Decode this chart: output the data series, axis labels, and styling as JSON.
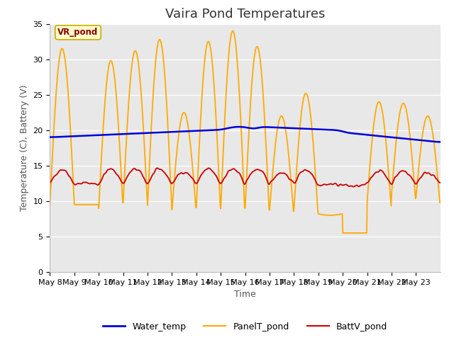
{
  "title": "Vaira Pond Temperatures",
  "xlabel": "Time",
  "ylabel": "Temperature (C), Battery (V)",
  "annotation": "VR_pond",
  "ylim": [
    0,
    35
  ],
  "yticks": [
    0,
    5,
    10,
    15,
    20,
    25,
    30,
    35
  ],
  "fig_bg_color": "#ffffff",
  "plot_bg_color": "#e8e8e8",
  "legend_labels": [
    "Water_temp",
    "PanelT_pond",
    "BattV_pond"
  ],
  "water_color": "#0000dd",
  "panel_color": "#ffaa00",
  "batt_color": "#cc0000",
  "water_linewidth": 1.8,
  "panel_linewidth": 1.3,
  "batt_linewidth": 1.3,
  "title_fontsize": 13,
  "label_fontsize": 9,
  "tick_fontsize": 8
}
